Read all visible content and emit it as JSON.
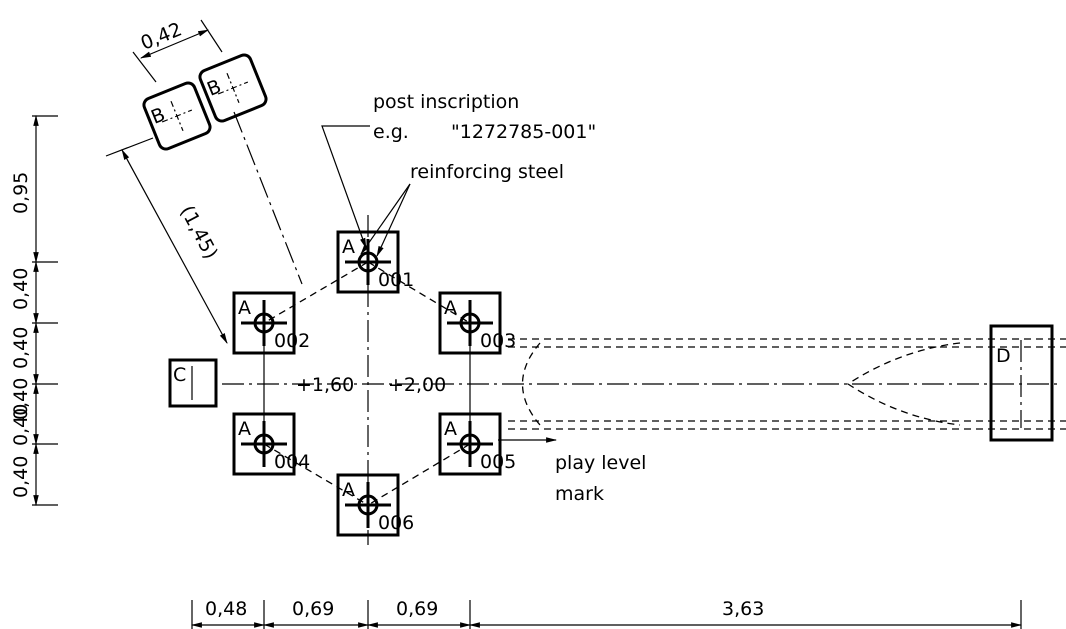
{
  "annotations": {
    "post_inscription_line1": "post inscription",
    "post_inscription_line2": "e.g.",
    "post_inscription_example": "\"1272785-001\"",
    "reinforcing_steel": "reinforcing steel",
    "play_level_line1": "play level",
    "play_level_line2": "mark"
  },
  "posts": [
    {
      "letter": "A",
      "number": "001"
    },
    {
      "letter": "A",
      "number": "002"
    },
    {
      "letter": "A",
      "number": "003"
    },
    {
      "letter": "A",
      "number": "004"
    },
    {
      "letter": "A",
      "number": "005"
    },
    {
      "letter": "A",
      "number": "006"
    }
  ],
  "component_labels": {
    "b1": "B",
    "b2": "B",
    "c": "C",
    "d": "D"
  },
  "heights": {
    "left": "+1,60",
    "right": "+2,00"
  },
  "dimensions": {
    "bottom": [
      "0,48",
      "0,69",
      "0,69",
      "3,63"
    ],
    "left": [
      "0,95",
      "0,40",
      "0,40",
      "0,40",
      "0,40",
      "0,40"
    ],
    "b_width": "0,42",
    "b_distance": "(1,45)"
  }
}
